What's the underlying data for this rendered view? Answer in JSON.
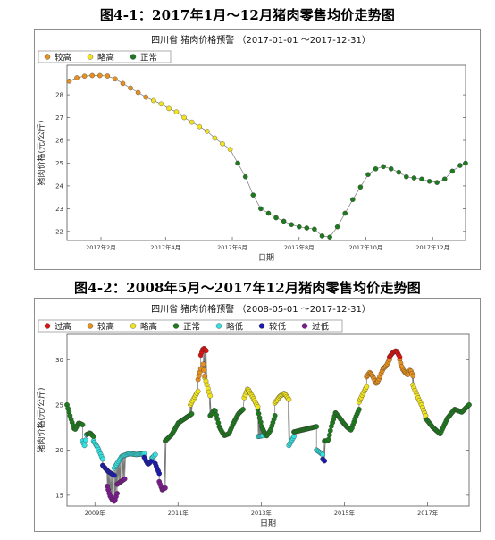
{
  "figure_captions": {
    "fig1": "图4-1：2017年1月～12月猪肉零售均价走势图",
    "fig2": "图4-2：2008年5月～2017年12月猪肉零售均价走势图"
  },
  "colors": {
    "过高": "#dd1111",
    "较高": "#e8901e",
    "略高": "#f2e41c",
    "正常": "#1e7a1e",
    "略低": "#34e0e0",
    "较低": "#1a1ab0",
    "过低": "#7a1a8c"
  },
  "chart_data": [
    {
      "type": "scatter",
      "title": "四川省 猪肉价格预警 （2017-01-01 ～2017-12-31）",
      "xlabel": "日期",
      "ylabel": "猪肉价格(元/公斤)",
      "xlim": [
        "2017-01-01",
        "2017-12-31"
      ],
      "ylim": [
        21.6,
        29.3
      ],
      "yticks": [
        22,
        23,
        24,
        25,
        26,
        27,
        28
      ],
      "xticks": [
        {
          "date": "2017-02-01",
          "label": "2017年2月"
        },
        {
          "date": "2017-04-01",
          "label": "2017年4月"
        },
        {
          "date": "2017-06-01",
          "label": "2017年6月"
        },
        {
          "date": "2017-08-01",
          "label": "2017年8月"
        },
        {
          "date": "2017-10-01",
          "label": "2017年10月"
        },
        {
          "date": "2017-12-01",
          "label": "2017年12月"
        }
      ],
      "legend": [
        "较高",
        "略高",
        "正常"
      ],
      "legend_position": "top-left",
      "grid": false,
      "points": [
        [
          "2017-01-03",
          28.6,
          "较高"
        ],
        [
          "2017-01-10",
          28.75,
          "较高"
        ],
        [
          "2017-01-17",
          28.82,
          "较高"
        ],
        [
          "2017-01-24",
          28.85,
          "较高"
        ],
        [
          "2017-01-31",
          28.85,
          "较高"
        ],
        [
          "2017-02-07",
          28.83,
          "较高"
        ],
        [
          "2017-02-14",
          28.7,
          "较高"
        ],
        [
          "2017-02-21",
          28.5,
          "较高"
        ],
        [
          "2017-02-28",
          28.3,
          "较高"
        ],
        [
          "2017-03-07",
          28.1,
          "较高"
        ],
        [
          "2017-03-14",
          27.9,
          "较高"
        ],
        [
          "2017-03-21",
          27.75,
          "略高"
        ],
        [
          "2017-03-28",
          27.6,
          "略高"
        ],
        [
          "2017-04-04",
          27.4,
          "略高"
        ],
        [
          "2017-04-11",
          27.25,
          "略高"
        ],
        [
          "2017-04-18",
          27.0,
          "略高"
        ],
        [
          "2017-04-25",
          26.8,
          "略高"
        ],
        [
          "2017-05-02",
          26.6,
          "略高"
        ],
        [
          "2017-05-09",
          26.4,
          "略高"
        ],
        [
          "2017-05-16",
          26.1,
          "略高"
        ],
        [
          "2017-05-23",
          25.85,
          "略高"
        ],
        [
          "2017-05-30",
          25.6,
          "略高"
        ],
        [
          "2017-06-06",
          25.0,
          "正常"
        ],
        [
          "2017-06-13",
          24.4,
          "正常"
        ],
        [
          "2017-06-20",
          23.6,
          "正常"
        ],
        [
          "2017-06-27",
          23.0,
          "正常"
        ],
        [
          "2017-07-04",
          22.8,
          "正常"
        ],
        [
          "2017-07-11",
          22.6,
          "正常"
        ],
        [
          "2017-07-18",
          22.45,
          "正常"
        ],
        [
          "2017-07-25",
          22.3,
          "正常"
        ],
        [
          "2017-08-01",
          22.2,
          "正常"
        ],
        [
          "2017-08-08",
          22.15,
          "正常"
        ],
        [
          "2017-08-15",
          22.1,
          "正常"
        ],
        [
          "2017-08-22",
          21.8,
          "正常"
        ],
        [
          "2017-08-29",
          21.75,
          "正常"
        ],
        [
          "2017-09-05",
          22.2,
          "正常"
        ],
        [
          "2017-09-12",
          22.8,
          "正常"
        ],
        [
          "2017-09-19",
          23.4,
          "正常"
        ],
        [
          "2017-09-26",
          23.95,
          "正常"
        ],
        [
          "2017-10-03",
          24.5,
          "正常"
        ],
        [
          "2017-10-10",
          24.75,
          "正常"
        ],
        [
          "2017-10-17",
          24.85,
          "正常"
        ],
        [
          "2017-10-24",
          24.75,
          "正常"
        ],
        [
          "2017-10-31",
          24.6,
          "正常"
        ],
        [
          "2017-11-07",
          24.4,
          "正常"
        ],
        [
          "2017-11-14",
          24.35,
          "正常"
        ],
        [
          "2017-11-21",
          24.3,
          "正常"
        ],
        [
          "2017-11-28",
          24.2,
          "正常"
        ],
        [
          "2017-12-05",
          24.15,
          "正常"
        ],
        [
          "2017-12-12",
          24.3,
          "正常"
        ],
        [
          "2017-12-19",
          24.65,
          "正常"
        ],
        [
          "2017-12-26",
          24.9,
          "正常"
        ],
        [
          "2017-12-31",
          25.0,
          "正常"
        ]
      ]
    },
    {
      "type": "scatter",
      "title": "四川省 猪肉价格预警 （2008-05-01 ～2017-12-31）",
      "xlabel": "日期",
      "ylabel": "猪肉价格(元/公斤)",
      "xlim": [
        "2008-05-01",
        "2017-12-31"
      ],
      "ylim": [
        13.8,
        32.8
      ],
      "yticks": [
        15,
        20,
        25,
        30
      ],
      "xticks": [
        {
          "date": "2009-01-01",
          "label": "2009年"
        },
        {
          "date": "2011-01-01",
          "label": "2011年"
        },
        {
          "date": "2013-01-01",
          "label": "2013年"
        },
        {
          "date": "2015-01-01",
          "label": "2015年"
        },
        {
          "date": "2017-01-01",
          "label": "2017年"
        }
      ],
      "legend": [
        "过高",
        "较高",
        "略高",
        "正常",
        "略低",
        "较低",
        "过低"
      ],
      "legend_position": "top-left",
      "grid": false,
      "series": [
        {
          "category": "正常",
          "ranges": [
            [
              "2008-05-01",
              "2008-09-15",
              25.0,
              23.5,
              22.2,
              23.0,
              22.8
            ],
            [
              "2008-10-20",
              "2008-12-20",
              21.7,
              21.9,
              21.5
            ],
            [
              "2010-09-10",
              "2011-05-01",
              21.0,
              21.7,
              23.0,
              23.5,
              24.0
            ],
            [
              "2011-10-10",
              "2012-07-25",
              23.8,
              24.5,
              22.5,
              21.6,
              21.8,
              23.0,
              24.0,
              24.5
            ],
            [
              "2012-12-01",
              "2013-05-01",
              24.5,
              22.5,
              21.5,
              22.2,
              23.8
            ],
            [
              "2013-10-15",
              "2014-05-01",
              22.0,
              22.6
            ],
            [
              "2014-07-10",
              "2014-10-15",
              21.0,
              21.0,
              22.8,
              24.1
            ],
            [
              "2014-10-15",
              "2015-05-10",
              24.1,
              23.6,
              23.0,
              22.5,
              22.2,
              23.5,
              24.5
            ],
            [
              "2016-12-15",
              "2017-12-31",
              23.5,
              22.5,
              21.8,
              23.5,
              24.5,
              24.2,
              25.0
            ]
          ]
        },
        {
          "category": "略低",
          "ranges": [
            [
              "2008-09-15",
              "2008-10-20",
              21.0,
              20.5,
              21.7
            ],
            [
              "2008-12-20",
              "2009-03-10",
              21.0,
              20.2,
              19.0
            ],
            [
              "2009-06-20",
              "2010-03-10",
              18.0,
              19.3,
              19.6,
              19.5,
              19.6
            ],
            [
              "2010-05-15",
              "2010-06-15",
              19.1,
              19.5
            ],
            [
              "2012-12-05",
              "2013-01-15",
              21.5,
              21.6
            ],
            [
              "2013-09-01",
              "2013-10-15",
              20.5,
              21.5
            ],
            [
              "2014-05-01",
              "2014-06-25",
              20.0,
              19.5
            ]
          ]
        },
        {
          "category": "较低",
          "ranges": [
            [
              "2009-03-10",
              "2009-06-20",
              18.3,
              17.6,
              17.2
            ],
            [
              "2010-03-10",
              "2010-05-15",
              19.2,
              18.4,
              18.8
            ],
            [
              "2010-06-15",
              "2010-07-20",
              18.5,
              17.4
            ],
            [
              "2014-06-25",
              "2014-07-10",
              19.0,
              18.8
            ]
          ]
        },
        {
          "category": "过低",
          "ranges": [
            [
              "2009-04-20",
              "2009-07-15",
              16.0,
              15.0,
              14.5,
              14.3,
              15.2
            ],
            [
              "2009-07-15",
              "2009-09-20",
              16.2,
              16.8
            ],
            [
              "2010-07-20",
              "2010-09-10",
              16.5,
              15.6,
              15.8
            ]
          ]
        },
        {
          "category": "略高",
          "ranges": [
            [
              "2011-04-20",
              "2011-06-25",
              25.0,
              26.5
            ],
            [
              "2011-08-25",
              "2011-10-10",
              28.0,
              26.0
            ],
            [
              "2012-08-05",
              "2012-12-01",
              25.8,
              26.8,
              26.2,
              25.5,
              24.8
            ],
            [
              "2013-05-01",
              "2013-09-01",
              25.2,
              25.9,
              26.3,
              25.6
            ],
            [
              "2015-05-10",
              "2015-07-15",
              25.3,
              26.2,
              27.0
            ],
            [
              "2016-08-25",
              "2016-12-15",
              27.2,
              26.0,
              25.0,
              23.8
            ]
          ]
        },
        {
          "category": "较高",
          "ranges": [
            [
              "2011-06-25",
              "2011-07-20",
              27.8,
              29.0
            ],
            [
              "2011-08-10",
              "2011-08-25",
              29.5,
              28.2
            ],
            [
              "2015-07-15",
              "2016-02-01",
              28.1,
              28.6,
              28.1,
              27.3,
              28.0,
              29.0,
              29.3,
              30.0
            ],
            [
              "2016-05-01",
              "2016-08-25",
              30.0,
              29.0,
              28.6,
              28.3,
              28.9,
              28.2
            ]
          ]
        },
        {
          "category": "过高",
          "ranges": [
            [
              "2011-07-20",
              "2011-09-05",
              30.5,
              31.3,
              31.0
            ],
            [
              "2016-02-01",
              "2016-05-01",
              30.3,
              30.8,
              31.0,
              30.3
            ]
          ]
        }
      ]
    }
  ]
}
